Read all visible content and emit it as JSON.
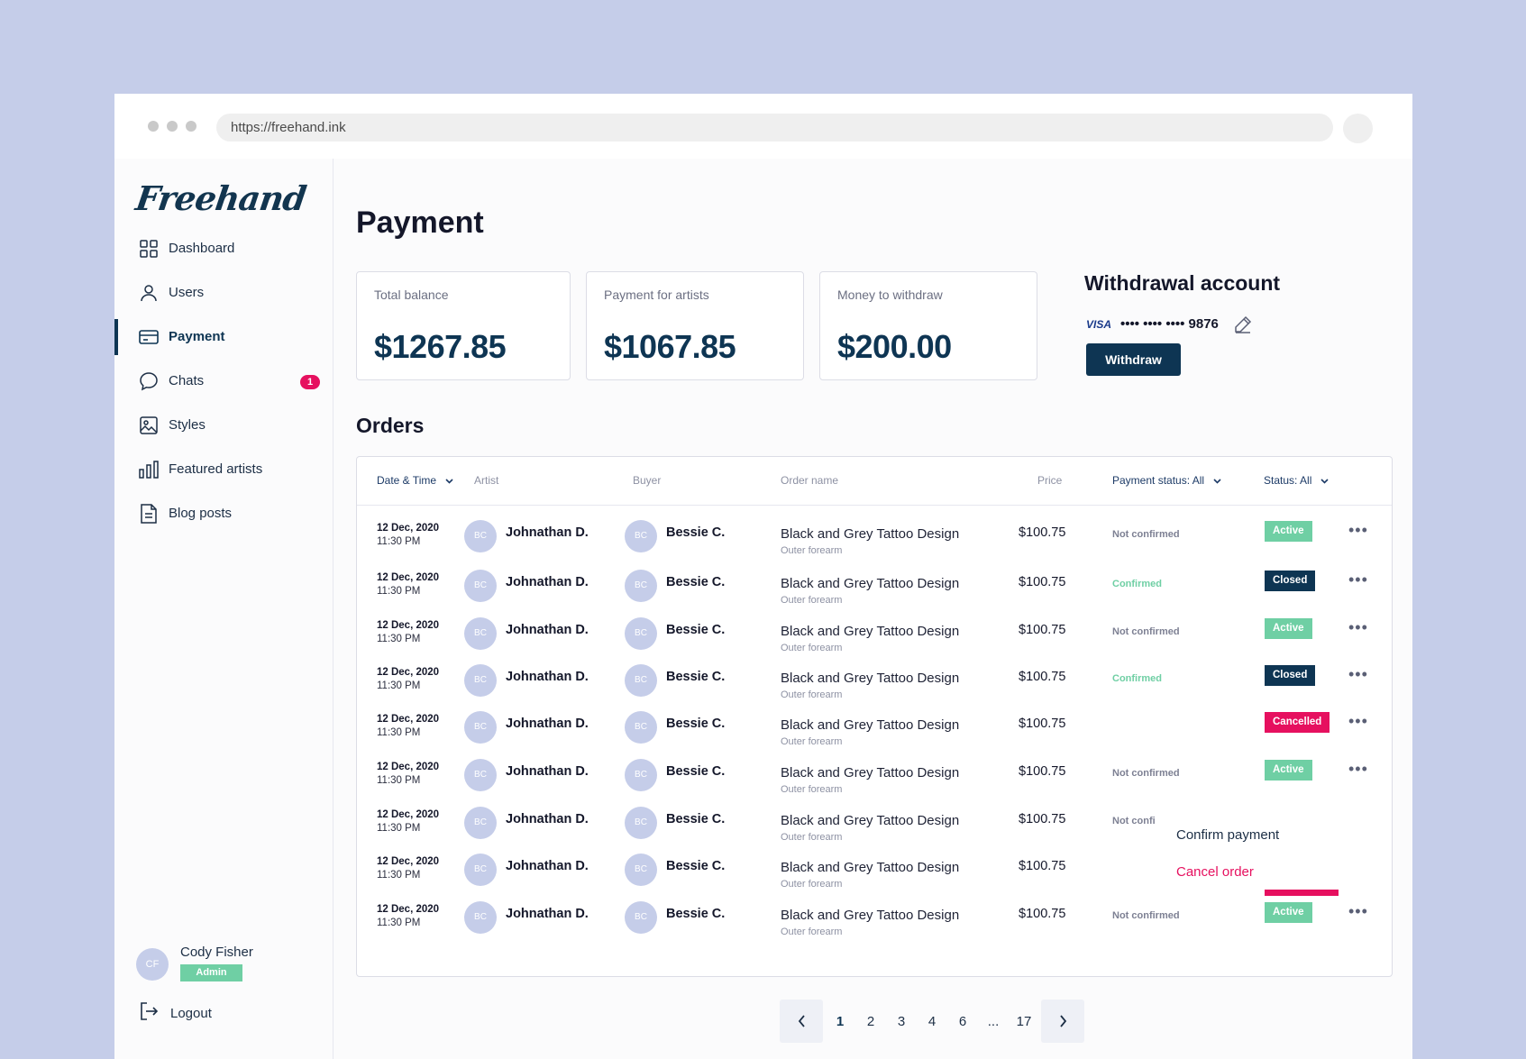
{
  "browser": {
    "url": "https://freehand.ink"
  },
  "sidebar": {
    "logo": "Freehand",
    "items": [
      {
        "label": "Dashboard",
        "icon": "grid-icon"
      },
      {
        "label": "Users",
        "icon": "user-icon"
      },
      {
        "label": "Payment",
        "icon": "card-icon",
        "active": true
      },
      {
        "label": "Chats",
        "icon": "chat-icon",
        "badge": "1"
      },
      {
        "label": "Styles",
        "icon": "image-icon"
      },
      {
        "label": "Featured artists",
        "icon": "bar-chart-icon"
      },
      {
        "label": "Blog posts",
        "icon": "document-icon"
      }
    ],
    "user": {
      "initials": "CF",
      "name": "Cody Fisher",
      "role": "Admin"
    },
    "logout": "Logout"
  },
  "page": {
    "title": "Payment"
  },
  "cards": [
    {
      "label": "Total balance",
      "value": "$1267.85"
    },
    {
      "label": "Payment for artists",
      "value": "$1067.85"
    },
    {
      "label": "Money to withdraw",
      "value": "$200.00"
    }
  ],
  "withdrawal": {
    "title": "Withdrawal account",
    "brand": "VISA",
    "card_number": "•••• •••• •••• 9876",
    "button": "Withdraw"
  },
  "orders": {
    "title": "Orders",
    "columns": {
      "date": "Date & Time",
      "artist": "Artist",
      "buyer": "Buyer",
      "order": "Order name",
      "price": "Price",
      "payment_status": "Payment status: All",
      "status": "Status: All"
    },
    "rows": [
      {
        "date": "12 Dec, 2020",
        "time": "11:30 PM",
        "artist_initials": "BC",
        "artist": "Johnathan D.",
        "buyer_initials": "BC",
        "buyer": "Bessie C.",
        "order": "Black and Grey Tattoo Design",
        "placement": "Outer forearm",
        "price": "$100.75",
        "payment_status": "Not confirmed",
        "status": "Active"
      },
      {
        "date": "12 Dec, 2020",
        "time": "11:30 PM",
        "artist_initials": "BC",
        "artist": "Johnathan D.",
        "buyer_initials": "BC",
        "buyer": "Bessie C.",
        "order": "Black and Grey Tattoo Design",
        "placement": "Outer forearm",
        "price": "$100.75",
        "payment_status": "Confirmed",
        "status": "Closed"
      },
      {
        "date": "12 Dec, 2020",
        "time": "11:30 PM",
        "artist_initials": "BC",
        "artist": "Johnathan D.",
        "buyer_initials": "BC",
        "buyer": "Bessie C.",
        "order": "Black and Grey Tattoo Design",
        "placement": "Outer forearm",
        "price": "$100.75",
        "payment_status": "Not confirmed",
        "status": "Active"
      },
      {
        "date": "12 Dec, 2020",
        "time": "11:30 PM",
        "artist_initials": "BC",
        "artist": "Johnathan D.",
        "buyer_initials": "BC",
        "buyer": "Bessie C.",
        "order": "Black and Grey Tattoo Design",
        "placement": "Outer forearm",
        "price": "$100.75",
        "payment_status": "Confirmed",
        "status": "Closed"
      },
      {
        "date": "12 Dec, 2020",
        "time": "11:30 PM",
        "artist_initials": "BC",
        "artist": "Johnathan D.",
        "buyer_initials": "BC",
        "buyer": "Bessie C.",
        "order": "Black and Grey Tattoo Design",
        "placement": "Outer forearm",
        "price": "$100.75",
        "payment_status": "",
        "status": "Cancelled"
      },
      {
        "date": "12 Dec, 2020",
        "time": "11:30 PM",
        "artist_initials": "BC",
        "artist": "Johnathan D.",
        "buyer_initials": "BC",
        "buyer": "Bessie C.",
        "order": "Black and Grey Tattoo Design",
        "placement": "Outer forearm",
        "price": "$100.75",
        "payment_status": "Not confirmed",
        "status": "Active"
      },
      {
        "date": "12 Dec, 2020",
        "time": "11:30 PM",
        "artist_initials": "BC",
        "artist": "Johnathan D.",
        "buyer_initials": "BC",
        "buyer": "Bessie C.",
        "order": "Black and Grey Tattoo Design",
        "placement": "Outer forearm",
        "price": "$100.75",
        "payment_status": "Not confi",
        "status": ""
      },
      {
        "date": "12 Dec, 2020",
        "time": "11:30 PM",
        "artist_initials": "BC",
        "artist": "Johnathan D.",
        "buyer_initials": "BC",
        "buyer": "Bessie C.",
        "order": "Black and Grey Tattoo Design",
        "placement": "Outer forearm",
        "price": "$100.75",
        "payment_status": "",
        "status": ""
      },
      {
        "date": "12 Dec, 2020",
        "time": "11:30 PM",
        "artist_initials": "BC",
        "artist": "Johnathan D.",
        "buyer_initials": "BC",
        "buyer": "Bessie C.",
        "order": "Black and Grey Tattoo Design",
        "placement": "Outer forearm",
        "price": "$100.75",
        "payment_status": "Not confirmed",
        "status": "Active"
      }
    ],
    "context_menu": {
      "confirm": "Confirm payment",
      "cancel": "Cancel order"
    }
  },
  "pagination": {
    "pages": [
      "1",
      "2",
      "3",
      "4",
      "6",
      "...",
      "17"
    ],
    "current": "1"
  },
  "colors": {
    "navy": "#0e3553",
    "active": "#6fcfa4",
    "cancelled": "#e6105f",
    "background": "#c5cde9"
  }
}
